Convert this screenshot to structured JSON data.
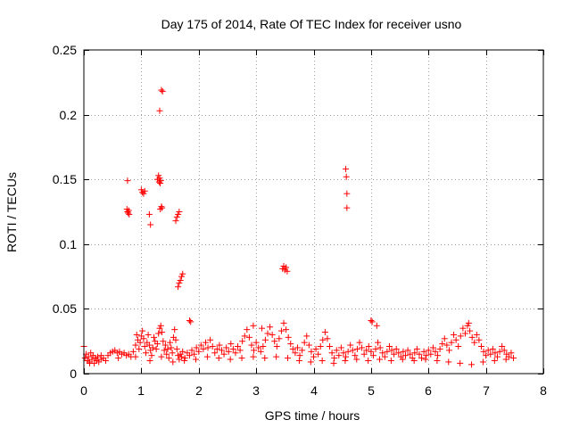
{
  "chart_data": {
    "type": "scatter",
    "title": "Day 175 of 2014, Rate Of TEC Index for receiver usno",
    "xlabel": "GPS time / hours",
    "ylabel": "ROTI / TECUs",
    "xlim": [
      0,
      8
    ],
    "ylim": [
      0,
      0.25
    ],
    "xticks": [
      0,
      1,
      2,
      3,
      4,
      5,
      6,
      7,
      8
    ],
    "yticks": [
      0,
      0.05,
      0.1,
      0.15,
      0.2,
      0.25
    ],
    "xtick_labels": [
      "0",
      "1",
      "2",
      "3",
      "4",
      "5",
      "6",
      "7",
      "8"
    ],
    "ytick_labels": [
      "0",
      "0.05",
      "0.1",
      "0.15",
      "0.2",
      "0.25"
    ],
    "grid": true,
    "marker": "+",
    "color": "#ff0000",
    "series": [
      {
        "name": "ROTI",
        "points": [
          [
            0.0,
            0.021
          ],
          [
            0.02,
            0.012
          ],
          [
            0.04,
            0.015
          ],
          [
            0.06,
            0.01
          ],
          [
            0.08,
            0.013
          ],
          [
            0.1,
            0.009
          ],
          [
            0.12,
            0.016
          ],
          [
            0.14,
            0.011
          ],
          [
            0.16,
            0.014
          ],
          [
            0.18,
            0.008
          ],
          [
            0.2,
            0.012
          ],
          [
            0.22,
            0.01
          ],
          [
            0.24,
            0.013
          ],
          [
            0.26,
            0.009
          ],
          [
            0.3,
            0.011
          ],
          [
            0.34,
            0.012
          ],
          [
            0.38,
            0.01
          ],
          [
            0.42,
            0.014
          ],
          [
            0.46,
            0.016
          ],
          [
            0.5,
            0.017
          ],
          [
            0.54,
            0.018
          ],
          [
            0.58,
            0.016
          ],
          [
            0.62,
            0.017
          ],
          [
            0.66,
            0.015
          ],
          [
            0.7,
            0.016
          ],
          [
            0.74,
            0.014
          ],
          [
            0.78,
            0.015
          ],
          [
            0.82,
            0.013
          ],
          [
            0.86,
            0.017
          ],
          [
            0.9,
            0.022
          ],
          [
            0.92,
            0.03
          ],
          [
            0.94,
            0.026
          ],
          [
            0.96,
            0.019
          ],
          [
            0.98,
            0.024
          ],
          [
            1.0,
            0.029
          ],
          [
            1.02,
            0.033
          ],
          [
            1.04,
            0.027
          ],
          [
            1.06,
            0.021
          ],
          [
            1.08,
            0.016
          ],
          [
            1.1,
            0.024
          ],
          [
            1.12,
            0.03
          ],
          [
            1.14,
            0.022
          ],
          [
            1.16,
            0.018
          ],
          [
            1.18,
            0.014
          ],
          [
            1.2,
            0.02
          ],
          [
            1.22,
            0.028
          ],
          [
            1.24,
            0.025
          ],
          [
            1.26,
            0.019
          ],
          [
            1.28,
            0.023
          ],
          [
            1.3,
            0.031
          ],
          [
            1.32,
            0.035
          ],
          [
            1.34,
            0.037
          ],
          [
            1.36,
            0.032
          ],
          [
            1.38,
            0.025
          ],
          [
            1.4,
            0.018
          ],
          [
            1.42,
            0.022
          ],
          [
            1.44,
            0.015
          ],
          [
            1.46,
            0.019
          ],
          [
            1.48,
            0.012
          ],
          [
            1.5,
            0.024
          ],
          [
            1.52,
            0.02
          ],
          [
            1.54,
            0.016
          ],
          [
            1.56,
            0.028
          ],
          [
            1.58,
            0.034
          ],
          [
            1.6,
            0.026
          ],
          [
            1.62,
            0.019
          ],
          [
            1.64,
            0.014
          ],
          [
            1.66,
            0.011
          ],
          [
            1.68,
            0.015
          ],
          [
            1.7,
            0.013
          ],
          [
            1.72,
            0.017
          ],
          [
            1.76,
            0.012
          ],
          [
            1.8,
            0.016
          ],
          [
            1.84,
            0.014
          ],
          [
            1.88,
            0.018
          ],
          [
            1.92,
            0.015
          ],
          [
            1.96,
            0.02
          ],
          [
            2.0,
            0.017
          ],
          [
            2.04,
            0.022
          ],
          [
            2.08,
            0.019
          ],
          [
            2.12,
            0.024
          ],
          [
            2.16,
            0.02
          ],
          [
            2.2,
            0.026
          ],
          [
            2.24,
            0.021
          ],
          [
            2.28,
            0.016
          ],
          [
            2.32,
            0.019
          ],
          [
            2.36,
            0.022
          ],
          [
            2.4,
            0.018
          ],
          [
            2.44,
            0.015
          ],
          [
            2.48,
            0.02
          ],
          [
            2.52,
            0.017
          ],
          [
            2.56,
            0.023
          ],
          [
            2.6,
            0.019
          ],
          [
            2.64,
            0.016
          ],
          [
            2.68,
            0.021
          ],
          [
            2.72,
            0.018
          ],
          [
            2.76,
            0.025
          ],
          [
            2.8,
            0.029
          ],
          [
            2.84,
            0.034
          ],
          [
            2.88,
            0.028
          ],
          [
            2.92,
            0.022
          ],
          [
            2.96,
            0.018
          ],
          [
            3.0,
            0.024
          ],
          [
            3.04,
            0.02
          ],
          [
            3.08,
            0.017
          ],
          [
            3.12,
            0.021
          ],
          [
            3.16,
            0.026
          ],
          [
            3.2,
            0.031
          ],
          [
            3.24,
            0.036
          ],
          [
            3.28,
            0.03
          ],
          [
            3.32,
            0.025
          ],
          [
            3.36,
            0.021
          ],
          [
            3.4,
            0.027
          ],
          [
            3.44,
            0.033
          ],
          [
            3.48,
            0.039
          ],
          [
            3.52,
            0.034
          ],
          [
            3.56,
            0.028
          ],
          [
            3.6,
            0.023
          ],
          [
            3.64,
            0.019
          ],
          [
            3.68,
            0.016
          ],
          [
            3.72,
            0.02
          ],
          [
            3.76,
            0.014
          ],
          [
            3.8,
            0.018
          ],
          [
            3.84,
            0.024
          ],
          [
            3.88,
            0.029
          ],
          [
            3.92,
            0.022
          ],
          [
            3.96,
            0.017
          ],
          [
            4.0,
            0.013
          ],
          [
            4.04,
            0.019
          ],
          [
            4.08,
            0.015
          ],
          [
            4.12,
            0.021
          ],
          [
            4.16,
            0.026
          ],
          [
            4.2,
            0.032
          ],
          [
            4.24,
            0.027
          ],
          [
            4.28,
            0.021
          ],
          [
            4.32,
            0.016
          ],
          [
            4.36,
            0.012
          ],
          [
            4.4,
            0.018
          ],
          [
            4.44,
            0.014
          ],
          [
            4.48,
            0.02
          ],
          [
            4.52,
            0.016
          ],
          [
            4.56,
            0.013
          ],
          [
            4.6,
            0.017
          ],
          [
            4.64,
            0.022
          ],
          [
            4.68,
            0.018
          ],
          [
            4.72,
            0.014
          ],
          [
            4.76,
            0.019
          ],
          [
            4.8,
            0.024
          ],
          [
            4.84,
            0.02
          ],
          [
            4.88,
            0.015
          ],
          [
            4.92,
            0.018
          ],
          [
            4.96,
            0.021
          ],
          [
            5.0,
            0.017
          ],
          [
            5.04,
            0.014
          ],
          [
            5.08,
            0.019
          ],
          [
            5.12,
            0.024
          ],
          [
            5.16,
            0.02
          ],
          [
            5.2,
            0.016
          ],
          [
            5.24,
            0.013
          ],
          [
            5.28,
            0.017
          ],
          [
            5.32,
            0.021
          ],
          [
            5.36,
            0.018
          ],
          [
            5.4,
            0.015
          ],
          [
            5.44,
            0.019
          ],
          [
            5.48,
            0.016
          ],
          [
            5.52,
            0.013
          ],
          [
            5.56,
            0.017
          ],
          [
            5.6,
            0.014
          ],
          [
            5.64,
            0.018
          ],
          [
            5.68,
            0.015
          ],
          [
            5.72,
            0.012
          ],
          [
            5.76,
            0.016
          ],
          [
            5.8,
            0.019
          ],
          [
            5.84,
            0.015
          ],
          [
            5.88,
            0.012
          ],
          [
            5.92,
            0.017
          ],
          [
            5.96,
            0.014
          ],
          [
            6.0,
            0.018
          ],
          [
            6.04,
            0.015
          ],
          [
            6.08,
            0.02
          ],
          [
            6.12,
            0.017
          ],
          [
            6.16,
            0.014
          ],
          [
            6.2,
            0.019
          ],
          [
            6.24,
            0.023
          ],
          [
            6.28,
            0.027
          ],
          [
            6.32,
            0.022
          ],
          [
            6.36,
            0.018
          ],
          [
            6.4,
            0.024
          ],
          [
            6.44,
            0.03
          ],
          [
            6.48,
            0.026
          ],
          [
            6.52,
            0.021
          ],
          [
            6.56,
            0.029
          ],
          [
            6.6,
            0.035
          ],
          [
            6.64,
            0.031
          ],
          [
            6.68,
            0.037
          ],
          [
            6.7,
            0.039
          ],
          [
            6.72,
            0.033
          ],
          [
            6.76,
            0.028
          ],
          [
            6.8,
            0.024
          ],
          [
            6.84,
            0.03
          ],
          [
            6.88,
            0.026
          ],
          [
            6.92,
            0.021
          ],
          [
            6.96,
            0.017
          ],
          [
            7.0,
            0.014
          ],
          [
            7.04,
            0.018
          ],
          [
            7.08,
            0.015
          ],
          [
            7.12,
            0.019
          ],
          [
            7.16,
            0.016
          ],
          [
            7.2,
            0.013
          ],
          [
            7.24,
            0.017
          ],
          [
            7.28,
            0.021
          ],
          [
            7.32,
            0.018
          ],
          [
            7.36,
            0.015
          ],
          [
            7.4,
            0.013
          ],
          [
            7.44,
            0.016
          ],
          [
            7.48,
            0.012
          ],
          [
            0.1,
            0.008
          ],
          [
            0.3,
            0.014
          ],
          [
            0.6,
            0.012
          ],
          [
            0.9,
            0.013
          ],
          [
            1.15,
            0.01
          ],
          [
            1.35,
            0.013
          ],
          [
            1.55,
            0.009
          ],
          [
            1.75,
            0.01
          ],
          [
            1.95,
            0.011
          ],
          [
            2.15,
            0.013
          ],
          [
            2.35,
            0.012
          ],
          [
            2.55,
            0.011
          ],
          [
            2.75,
            0.012
          ],
          [
            2.95,
            0.013
          ],
          [
            3.15,
            0.012
          ],
          [
            3.35,
            0.013
          ],
          [
            3.55,
            0.012
          ],
          [
            3.75,
            0.01
          ],
          [
            3.95,
            0.009
          ],
          [
            4.15,
            0.01
          ],
          [
            4.35,
            0.008
          ],
          [
            4.55,
            0.01
          ],
          [
            4.75,
            0.011
          ],
          [
            4.95,
            0.01
          ],
          [
            5.15,
            0.011
          ],
          [
            5.35,
            0.01
          ],
          [
            5.55,
            0.011
          ],
          [
            5.75,
            0.01
          ],
          [
            5.95,
            0.011
          ],
          [
            6.15,
            0.01
          ],
          [
            6.35,
            0.009
          ],
          [
            6.55,
            0.008
          ],
          [
            6.75,
            0.007
          ],
          [
            6.95,
            0.009
          ],
          [
            7.15,
            0.01
          ],
          [
            7.35,
            0.011
          ],
          [
            0.75,
            0.127
          ],
          [
            0.76,
            0.125
          ],
          [
            0.77,
            0.124
          ],
          [
            0.78,
            0.126
          ],
          [
            0.79,
            0.123
          ],
          [
            0.76,
            0.149
          ],
          [
            1.0,
            0.142
          ],
          [
            1.02,
            0.14
          ],
          [
            1.04,
            0.139
          ],
          [
            1.06,
            0.141
          ],
          [
            1.14,
            0.123
          ],
          [
            1.16,
            0.115
          ],
          [
            1.28,
            0.15
          ],
          [
            1.3,
            0.153
          ],
          [
            1.31,
            0.148
          ],
          [
            1.32,
            0.151
          ],
          [
            1.33,
            0.147
          ],
          [
            1.34,
            0.149
          ],
          [
            1.32,
            0.203
          ],
          [
            1.35,
            0.219
          ],
          [
            1.37,
            0.218
          ],
          [
            1.33,
            0.127
          ],
          [
            1.35,
            0.129
          ],
          [
            1.36,
            0.128
          ],
          [
            1.6,
            0.118
          ],
          [
            1.62,
            0.121
          ],
          [
            1.64,
            0.123
          ],
          [
            1.66,
            0.125
          ],
          [
            1.64,
            0.067
          ],
          [
            1.66,
            0.07
          ],
          [
            1.68,
            0.072
          ],
          [
            1.7,
            0.075
          ],
          [
            1.72,
            0.077
          ],
          [
            3.46,
            0.081
          ],
          [
            3.48,
            0.083
          ],
          [
            3.5,
            0.08
          ],
          [
            3.52,
            0.082
          ],
          [
            3.54,
            0.079
          ],
          [
            4.56,
            0.158
          ],
          [
            4.57,
            0.152
          ],
          [
            4.58,
            0.139
          ],
          [
            4.58,
            0.128
          ],
          [
            5.0,
            0.041
          ],
          [
            5.02,
            0.04
          ],
          [
            1.84,
            0.041
          ],
          [
            1.86,
            0.04
          ],
          [
            2.95,
            0.037
          ],
          [
            3.1,
            0.035
          ],
          [
            5.1,
            0.037
          ]
        ]
      }
    ]
  }
}
